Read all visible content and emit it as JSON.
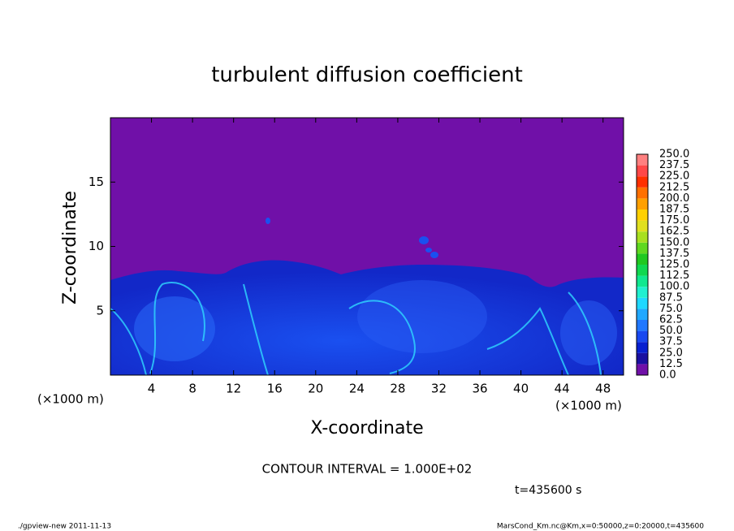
{
  "chart_data": {
    "type": "contour",
    "title": "turbulent diffusion coefficient",
    "x_label": "X-coordinate",
    "y_label": "Z-coordinate",
    "x_unit_label": "(×1000 m)",
    "xlim": [
      0,
      50
    ],
    "ylim": [
      0,
      20
    ],
    "xticks": [
      4,
      8,
      12,
      16,
      20,
      24,
      28,
      32,
      36,
      40,
      44,
      48
    ],
    "yticks": [
      5,
      10,
      15
    ],
    "colorbar": {
      "levels": [
        {
          "value": 0,
          "label": "0.0"
        },
        12.5,
        {
          "value": 25,
          "label": "25.0"
        },
        37.5,
        {
          "value": 50,
          "label": "50.0"
        },
        62.5,
        {
          "value": 75,
          "label": "75.0"
        },
        87.5,
        {
          "value": 100,
          "label": "100.0"
        },
        112.5,
        {
          "value": 125,
          "label": "125.0"
        },
        137.5,
        {
          "value": 150,
          "label": "150.0"
        },
        162.5,
        {
          "value": 175,
          "label": "175.0"
        },
        187.5,
        {
          "value": 200,
          "label": "200.0"
        },
        212.5,
        {
          "value": 225,
          "label": "225.0"
        },
        237.5,
        {
          "value": 250,
          "label": "250.0"
        }
      ],
      "colors": [
        "#7010a8",
        "#1a10a0",
        "#0820d0",
        "#1848f0",
        "#2078ff",
        "#20a8ff",
        "#20d8ff",
        "#20f0d0",
        "#10e890",
        "#10d850",
        "#20c820",
        "#60d820",
        "#a8e020",
        "#e0e020",
        "#ffd000",
        "#ffa000",
        "#ff7000",
        "#ff3000",
        "#ff4848",
        "#ff8080"
      ]
    },
    "contour_interval": "CONTOUR INTERVAL = 1.000E+02",
    "time_label": "t=435600 s",
    "footer_left": "./gpview-new  2011-11-13",
    "footer_right": "MarsCond_Km.nc@Km,x=0:50000,z=0:20000,t=435600"
  }
}
